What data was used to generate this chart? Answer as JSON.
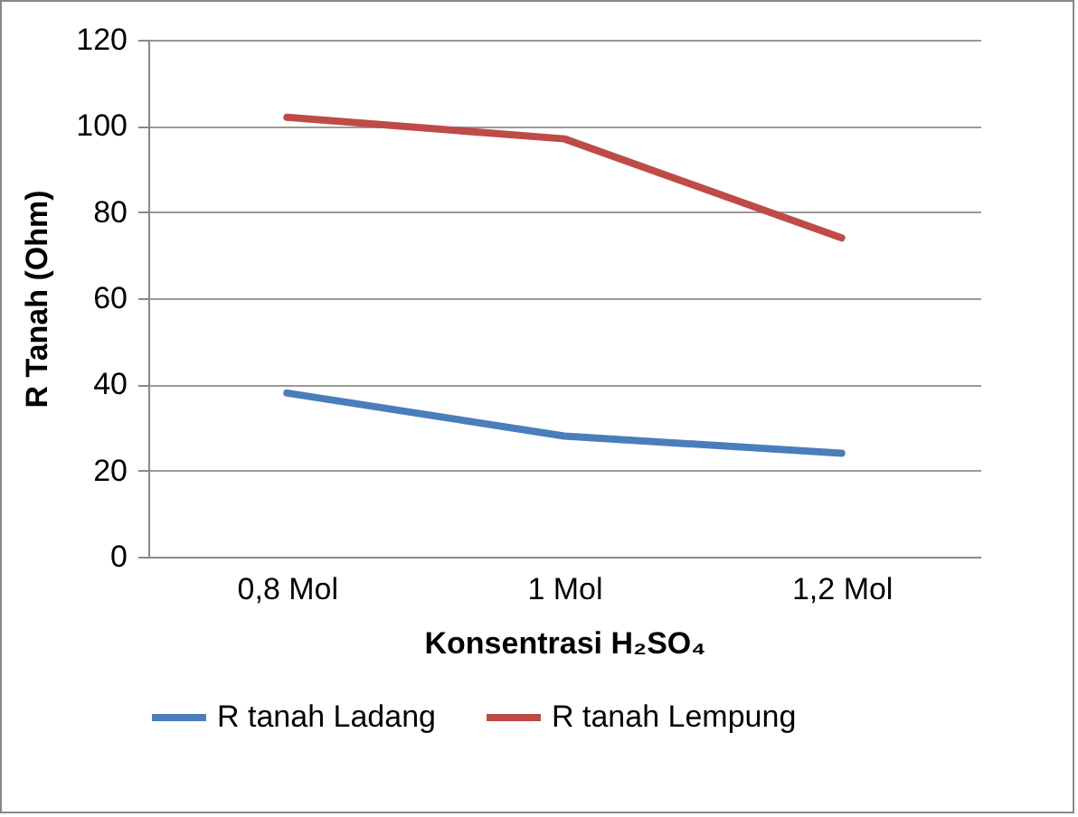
{
  "chart_data": {
    "type": "line",
    "xlabel": "Konsentrasi H₂SO₄",
    "ylabel": "R Tanah (Ohm)",
    "categories": [
      "0,8 Mol",
      "1 Mol",
      "1,2 Mol"
    ],
    "series": [
      {
        "name": "R tanah Ladang",
        "color": "#4a7ebb",
        "values": [
          38,
          28,
          24
        ]
      },
      {
        "name": "R tanah Lempung",
        "color": "#be4b48",
        "values": [
          102,
          97,
          74
        ]
      }
    ],
    "ylim": [
      0,
      120
    ],
    "yticks": [
      0,
      20,
      40,
      60,
      80,
      100,
      120
    ],
    "grid": "y",
    "legend": "bottom",
    "marker": "none",
    "line_style": "solid"
  }
}
